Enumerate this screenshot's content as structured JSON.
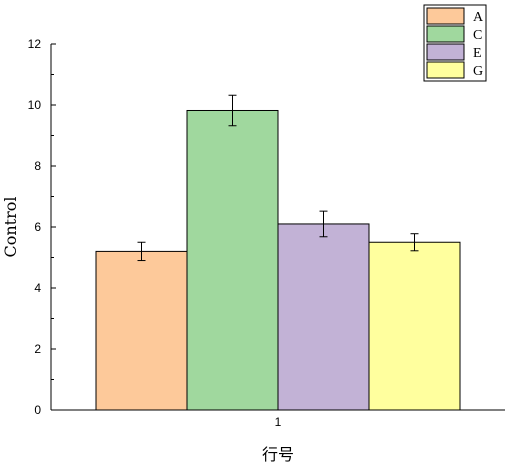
{
  "chart_data": {
    "type": "bar",
    "categories": [
      "1"
    ],
    "xlabel": "行号",
    "ylabel": "Control",
    "ylim": [
      0,
      12
    ],
    "yticks": [
      0,
      2,
      4,
      6,
      8,
      10,
      12
    ],
    "grid": false,
    "legend_position": "top-right",
    "series": [
      {
        "name": "A",
        "values": [
          5.2
        ],
        "error": [
          0.3
        ],
        "color": "#FDC99A"
      },
      {
        "name": "C",
        "values": [
          9.82
        ],
        "error": [
          0.5
        ],
        "color": "#A0D89E"
      },
      {
        "name": "E",
        "values": [
          6.1
        ],
        "error": [
          0.42
        ],
        "color": "#C2B2D6"
      },
      {
        "name": "G",
        "values": [
          5.5
        ],
        "error": [
          0.28
        ],
        "color": "#FFFF9E"
      }
    ]
  }
}
